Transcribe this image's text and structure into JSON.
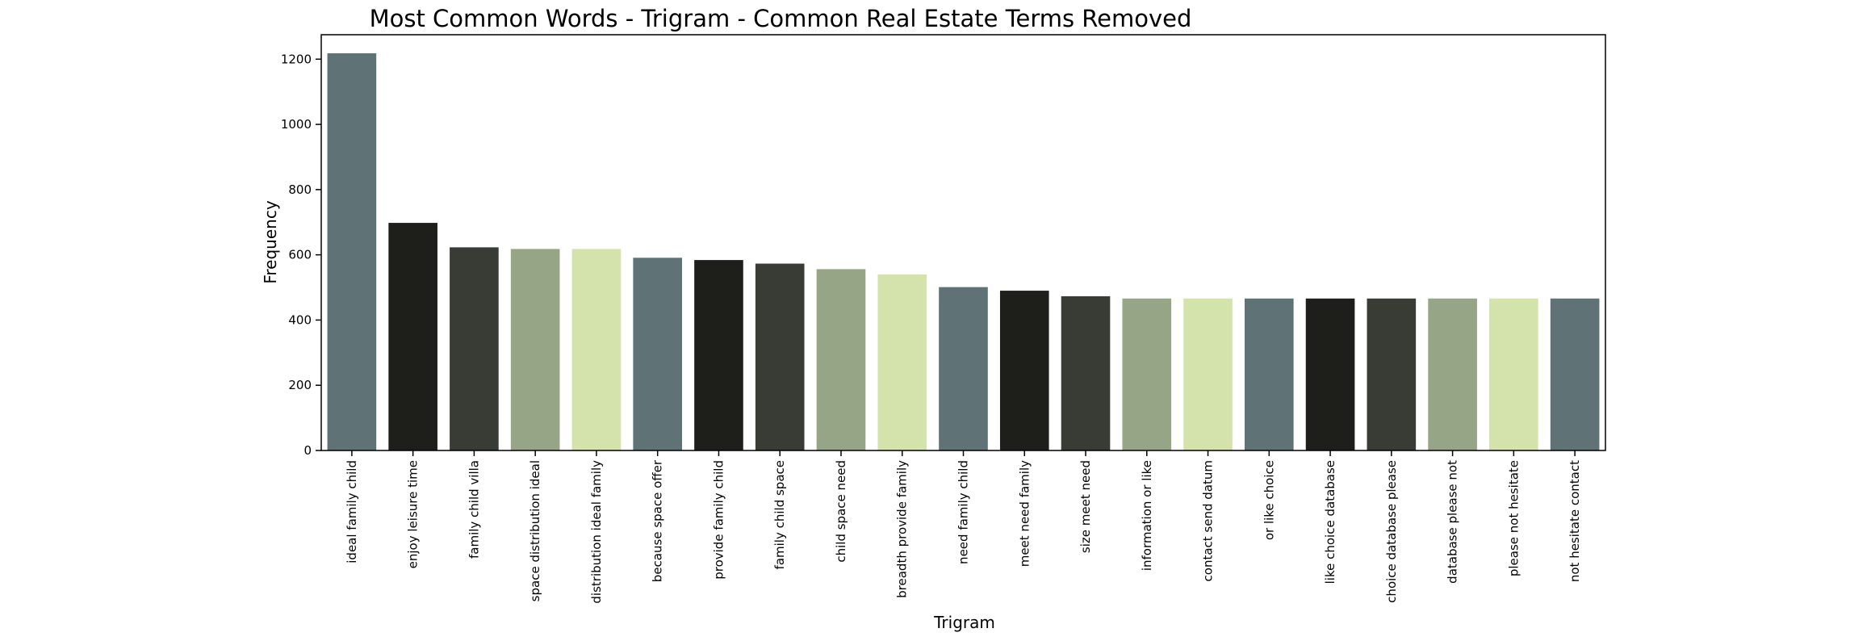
{
  "chart_data": {
    "type": "bar",
    "title": "Most Common Words - Trigram - Common Real Estate Terms Removed",
    "xlabel": "Trigram",
    "ylabel": "Frequency",
    "ylim": [
      0,
      1275
    ],
    "yticks": [
      0,
      200,
      400,
      600,
      800,
      1000,
      1200
    ],
    "grid": false,
    "legend": "none",
    "categories": [
      "ideal family child",
      "enjoy leisure time",
      "family child villa",
      "space distribution ideal",
      "distribution ideal family",
      "because space offer",
      "provide family child",
      "family child space",
      "child space need",
      "breadth provide family",
      "need family child",
      "meet need family",
      "size meet need",
      "information or like",
      "contact send datum",
      "or like choice",
      "like choice database",
      "choice database please",
      "database please not",
      "please not hesitate",
      "not hesitate contact"
    ],
    "values": [
      1218,
      698,
      623,
      618,
      618,
      591,
      584,
      573,
      556,
      540,
      501,
      490,
      473,
      466,
      466,
      466,
      466,
      466,
      466,
      466,
      466
    ],
    "palette": [
      "#5f7376",
      "#1e1f1b",
      "#393c35",
      "#95a586",
      "#d3e3ab"
    ]
  }
}
